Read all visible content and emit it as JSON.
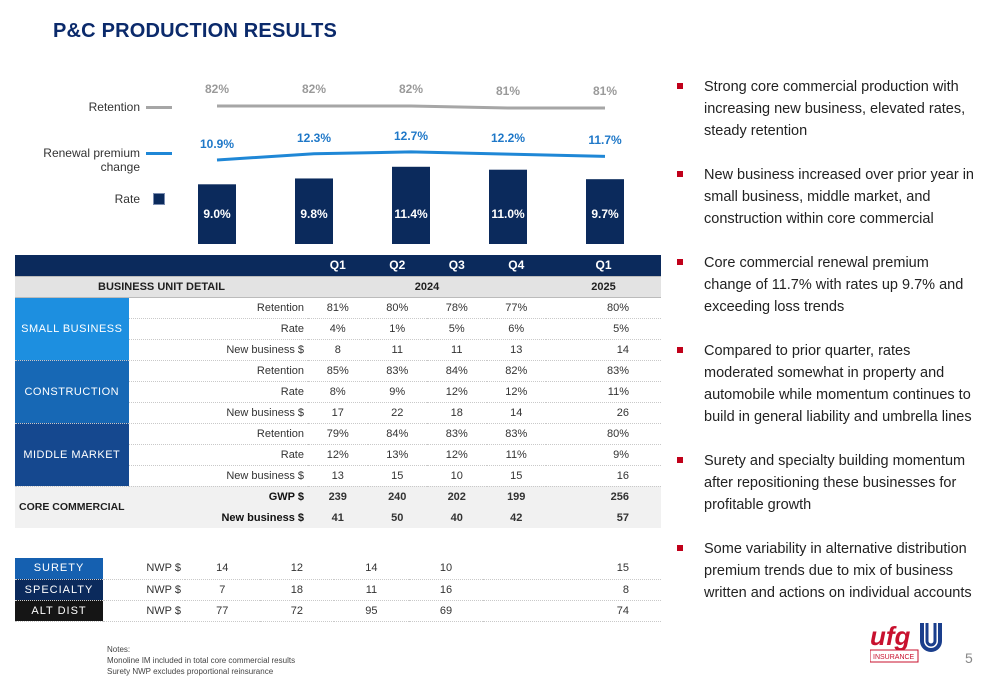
{
  "title": "P&C PRODUCTION RESULTS",
  "legend": {
    "retention": "Retention",
    "renewal": "Renewal premium change",
    "rate": "Rate"
  },
  "chart_data": {
    "type": "bar",
    "categories": [
      "Q1",
      "Q2",
      "Q3",
      "Q4",
      "Q1"
    ],
    "series": [
      {
        "name": "Retention",
        "type": "line",
        "values": [
          82,
          82,
          82,
          81,
          81
        ],
        "labels": [
          "82%",
          "82%",
          "82%",
          "81%",
          "81%"
        ]
      },
      {
        "name": "Renewal premium change",
        "type": "line",
        "values": [
          10.9,
          12.3,
          12.7,
          12.2,
          11.7
        ],
        "labels": [
          "10.9%",
          "12.3%",
          "12.7%",
          "12.2%",
          "11.7%"
        ]
      },
      {
        "name": "Rate",
        "type": "bar",
        "values": [
          9.0,
          9.8,
          11.4,
          11.0,
          9.7
        ],
        "labels": [
          "9.0%",
          "9.8%",
          "11.4%",
          "11.0%",
          "9.7%"
        ]
      }
    ],
    "colors": {
      "retention": "#a6a6a6",
      "renewal": "#1f87d6",
      "rate": "#0b2a5c"
    }
  },
  "table": {
    "quarters": [
      "Q1",
      "Q2",
      "Q3",
      "Q4",
      "Q1"
    ],
    "detail_label": "BUSINESS UNIT DETAIL",
    "year_2024": "2024",
    "year_2025": "2025",
    "segments": [
      {
        "name": "SMALL BUSINESS",
        "rows": [
          {
            "metric": "Retention",
            "values": [
              "81%",
              "80%",
              "78%",
              "77%",
              "80%"
            ]
          },
          {
            "metric": "Rate",
            "values": [
              "4%",
              "1%",
              "5%",
              "6%",
              "5%"
            ]
          },
          {
            "metric": "New business $",
            "values": [
              "8",
              "11",
              "11",
              "13",
              "14"
            ]
          }
        ]
      },
      {
        "name": "CONSTRUCTION",
        "rows": [
          {
            "metric": "Retention",
            "values": [
              "85%",
              "83%",
              "84%",
              "82%",
              "83%"
            ]
          },
          {
            "metric": "Rate",
            "values": [
              "8%",
              "9%",
              "12%",
              "12%",
              "11%"
            ]
          },
          {
            "metric": "New business $",
            "values": [
              "17",
              "22",
              "18",
              "14",
              "26"
            ]
          }
        ]
      },
      {
        "name": "MIDDLE MARKET",
        "rows": [
          {
            "metric": "Retention",
            "values": [
              "79%",
              "84%",
              "83%",
              "83%",
              "80%"
            ]
          },
          {
            "metric": "Rate",
            "values": [
              "12%",
              "13%",
              "12%",
              "11%",
              "9%"
            ]
          },
          {
            "metric": "New business $",
            "values": [
              "13",
              "15",
              "10",
              "15",
              "16"
            ]
          }
        ]
      }
    ],
    "core": {
      "name": "CORE COMMERCIAL",
      "rows": [
        {
          "metric": "GWP $",
          "values": [
            "239",
            "240",
            "202",
            "199",
            "256"
          ]
        },
        {
          "metric": "New business $",
          "values": [
            "41",
            "50",
            "40",
            "42",
            "57"
          ]
        }
      ]
    },
    "other": [
      {
        "name": "SURETY",
        "metric": "NWP $",
        "values": [
          "14",
          "12",
          "14",
          "10",
          "15"
        ]
      },
      {
        "name": "SPECIALTY",
        "metric": "NWP $",
        "values": [
          "7",
          "18",
          "11",
          "16",
          "8"
        ]
      },
      {
        "name": "ALT DIST",
        "metric": "NWP $",
        "values": [
          "77",
          "72",
          "95",
          "69",
          "74"
        ]
      }
    ]
  },
  "bullets": [
    "Strong core commercial production with increasing new business, elevated rates, steady retention",
    "New business increased over prior year in small business, middle market, and construction within core commercial",
    "Core commercial renewal premium change of 11.7% with rates up 9.7% and exceeding loss trends",
    "Compared to prior quarter, rates moderated somewhat in property and automobile while momentum continues to build in general liability and umbrella lines",
    "Surety and specialty building momentum after repositioning these businesses for profitable growth",
    "Some variability in alternative distribution premium trends due to mix of business written and actions on individual accounts"
  ],
  "notes": {
    "heading": "Notes:",
    "line1": "Monoline IM included in total core commercial results",
    "line2": "Surety NWP excludes proportional reinsurance"
  },
  "logo": {
    "brand": "ufg",
    "sub": "INSURANCE"
  },
  "page_number": "5"
}
